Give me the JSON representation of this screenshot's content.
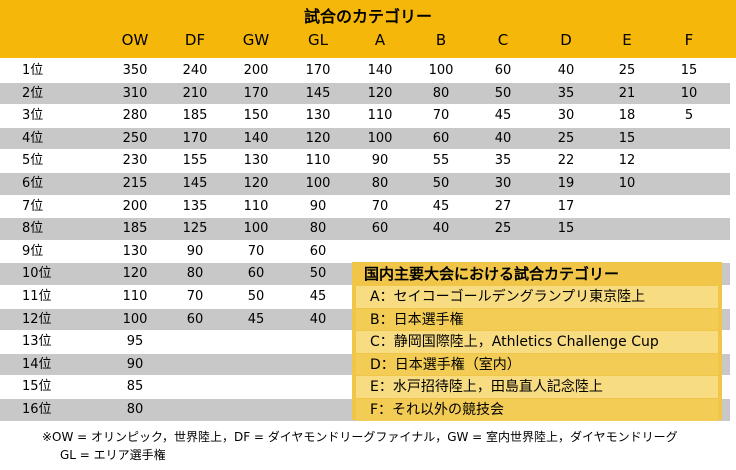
{
  "title": "試合のカテゴリー",
  "columns": [
    "OW",
    "DF",
    "GW",
    "GL",
    "A",
    "B",
    "C",
    "D",
    "E",
    "F"
  ],
  "rows": [
    {
      "rank": "1位",
      "values": [
        350,
        240,
        200,
        170,
        140,
        100,
        60,
        40,
        25,
        15
      ]
    },
    {
      "rank": "2位",
      "values": [
        310,
        210,
        170,
        145,
        120,
        80,
        50,
        35,
        21,
        10
      ]
    },
    {
      "rank": "3位",
      "values": [
        280,
        185,
        150,
        130,
        110,
        70,
        45,
        30,
        18,
        5
      ]
    },
    {
      "rank": "4位",
      "values": [
        250,
        170,
        140,
        120,
        100,
        60,
        40,
        25,
        15
      ]
    },
    {
      "rank": "5位",
      "values": [
        230,
        155,
        130,
        110,
        90,
        55,
        35,
        22,
        12
      ]
    },
    {
      "rank": "6位",
      "values": [
        215,
        145,
        120,
        100,
        80,
        50,
        30,
        19,
        10
      ]
    },
    {
      "rank": "7位",
      "values": [
        200,
        135,
        110,
        90,
        70,
        45,
        27,
        17
      ]
    },
    {
      "rank": "8位",
      "values": [
        185,
        125,
        100,
        80,
        60,
        40,
        25,
        15
      ]
    },
    {
      "rank": "9位",
      "values": [
        130,
        90,
        70,
        60
      ]
    },
    {
      "rank": "10位",
      "values": [
        120,
        80,
        60,
        50
      ]
    },
    {
      "rank": "11位",
      "values": [
        110,
        70,
        50,
        45
      ]
    },
    {
      "rank": "12位",
      "values": [
        100,
        60,
        45,
        40
      ]
    },
    {
      "rank": "13位",
      "values": [
        95
      ]
    },
    {
      "rank": "14位",
      "values": [
        90
      ]
    },
    {
      "rank": "15位",
      "values": [
        85
      ]
    },
    {
      "rank": "16位",
      "values": [
        80
      ]
    }
  ],
  "legend": {
    "title": "国内主要大会における試合カテゴリー",
    "items": [
      "A：セイコーゴールデングランプリ東京陸上",
      "B：日本選手権",
      "C：静岡国際陸上，Athletics Challenge Cup",
      "D：日本選手権（室内）",
      "E：水戸招待陸上，田島直人記念陸上",
      "F：それ以外の競技会"
    ]
  },
  "footnote": [
    "※OW = オリンピック，世界陸上，DF = ダイヤモンドリーグファイナル，GW = 室内世界陸上，ダイヤモンドリーグ",
    "GL = エリア選手権"
  ]
}
